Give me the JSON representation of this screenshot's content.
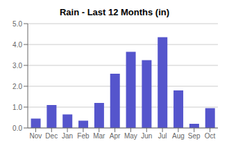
{
  "chart_data": {
    "type": "bar",
    "title": "Rain - Last 12 Months (in)",
    "categories": [
      "Nov",
      "Dec",
      "Jan",
      "Feb",
      "Mar",
      "Apr",
      "May",
      "Jun",
      "Jul",
      "Aug",
      "Sep",
      "Oct"
    ],
    "values": [
      0.45,
      1.1,
      0.65,
      0.35,
      1.2,
      2.6,
      3.65,
      3.25,
      4.35,
      1.8,
      0.2,
      0.95
    ],
    "color": "#5555cc",
    "ylim": [
      0,
      5.0
    ],
    "yticks": [
      {
        "value": 0,
        "label": "0.0"
      },
      {
        "value": 1,
        "label": "1.0"
      },
      {
        "value": 2,
        "label": "2.0"
      },
      {
        "value": 3,
        "label": "3.0"
      },
      {
        "value": 4,
        "label": "4.0"
      },
      {
        "value": 5,
        "label": "5.0"
      }
    ],
    "grid": true
  }
}
